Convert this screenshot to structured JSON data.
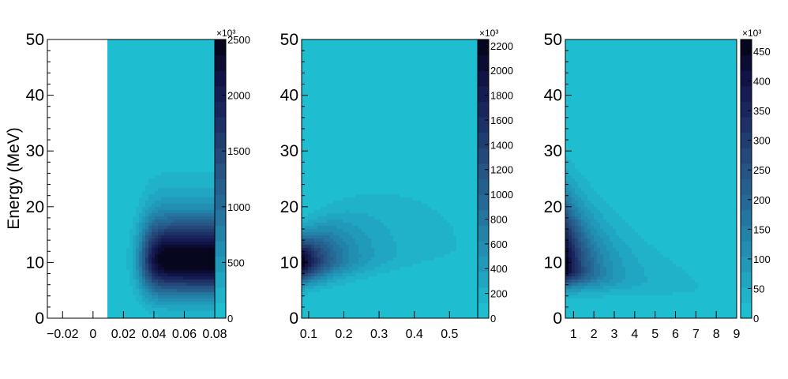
{
  "chart_data": [
    {
      "type": "heatmap",
      "ylabel": "Energy (MeV)",
      "xlabel": "",
      "xlim": [
        -0.03,
        0.08
      ],
      "ylim": [
        0,
        50
      ],
      "x_ticks": [
        "−0.02",
        "0",
        "0.02",
        "0.04",
        "0.06",
        "0.08"
      ],
      "x_tick_values": [
        -0.02,
        0,
        0.02,
        0.04,
        0.06,
        0.08
      ],
      "y_ticks": [
        "0",
        "10",
        "20",
        "30",
        "40",
        "50"
      ],
      "y_tick_values": [
        0,
        10,
        20,
        30,
        40,
        50
      ],
      "data_x_start": 0.01,
      "peak": {
        "x": 0.06,
        "y": 10
      },
      "z_range": [
        0,
        2500
      ],
      "colorbar_ticks": [
        "0",
        "500",
        "1000",
        "1500",
        "2000",
        "2500"
      ],
      "colorbar_tick_values": [
        0,
        500,
        1000,
        1500,
        2000,
        2500
      ],
      "colorbar_exponent": "×10³"
    },
    {
      "type": "heatmap",
      "xlabel": "",
      "ylabel": "",
      "xlim": [
        0.08,
        0.58
      ],
      "ylim": [
        0,
        50
      ],
      "x_ticks": [
        "0.1",
        "0.2",
        "0.3",
        "0.4",
        "0.5"
      ],
      "x_tick_values": [
        0.1,
        0.2,
        0.3,
        0.4,
        0.5
      ],
      "y_ticks": [
        "0",
        "10",
        "20",
        "30",
        "40",
        "50"
      ],
      "y_tick_values": [
        0,
        10,
        20,
        30,
        40,
        50
      ],
      "peak": {
        "x": 0.08,
        "y": 10
      },
      "z_range": [
        0,
        2250
      ],
      "colorbar_ticks": [
        "0",
        "200",
        "400",
        "600",
        "800",
        "1000",
        "1200",
        "1400",
        "1600",
        "1800",
        "2000",
        "2200"
      ],
      "colorbar_tick_values": [
        0,
        200,
        400,
        600,
        800,
        1000,
        1200,
        1400,
        1600,
        1800,
        2000,
        2200
      ],
      "colorbar_exponent": "×10³"
    },
    {
      "type": "heatmap",
      "xlabel": "",
      "ylabel": "",
      "xlim": [
        0.6,
        9.0
      ],
      "ylim": [
        0,
        50
      ],
      "x_ticks": [
        "1",
        "2",
        "3",
        "4",
        "5",
        "6",
        "7",
        "8",
        "9"
      ],
      "x_tick_values": [
        1,
        2,
        3,
        4,
        5,
        6,
        7,
        8,
        9
      ],
      "y_ticks": [
        "0",
        "10",
        "20",
        "30",
        "40",
        "50"
      ],
      "y_tick_values": [
        0,
        10,
        20,
        30,
        40,
        50
      ],
      "peak": {
        "x": 0.6,
        "y": 10
      },
      "z_range": [
        0,
        470
      ],
      "colorbar_ticks": [
        "0",
        "50",
        "100",
        "150",
        "200",
        "250",
        "300",
        "350",
        "400",
        "450"
      ],
      "colorbar_tick_values": [
        0,
        50,
        100,
        150,
        200,
        250,
        300,
        350,
        400,
        450
      ],
      "colorbar_exponent": "×10³"
    }
  ]
}
